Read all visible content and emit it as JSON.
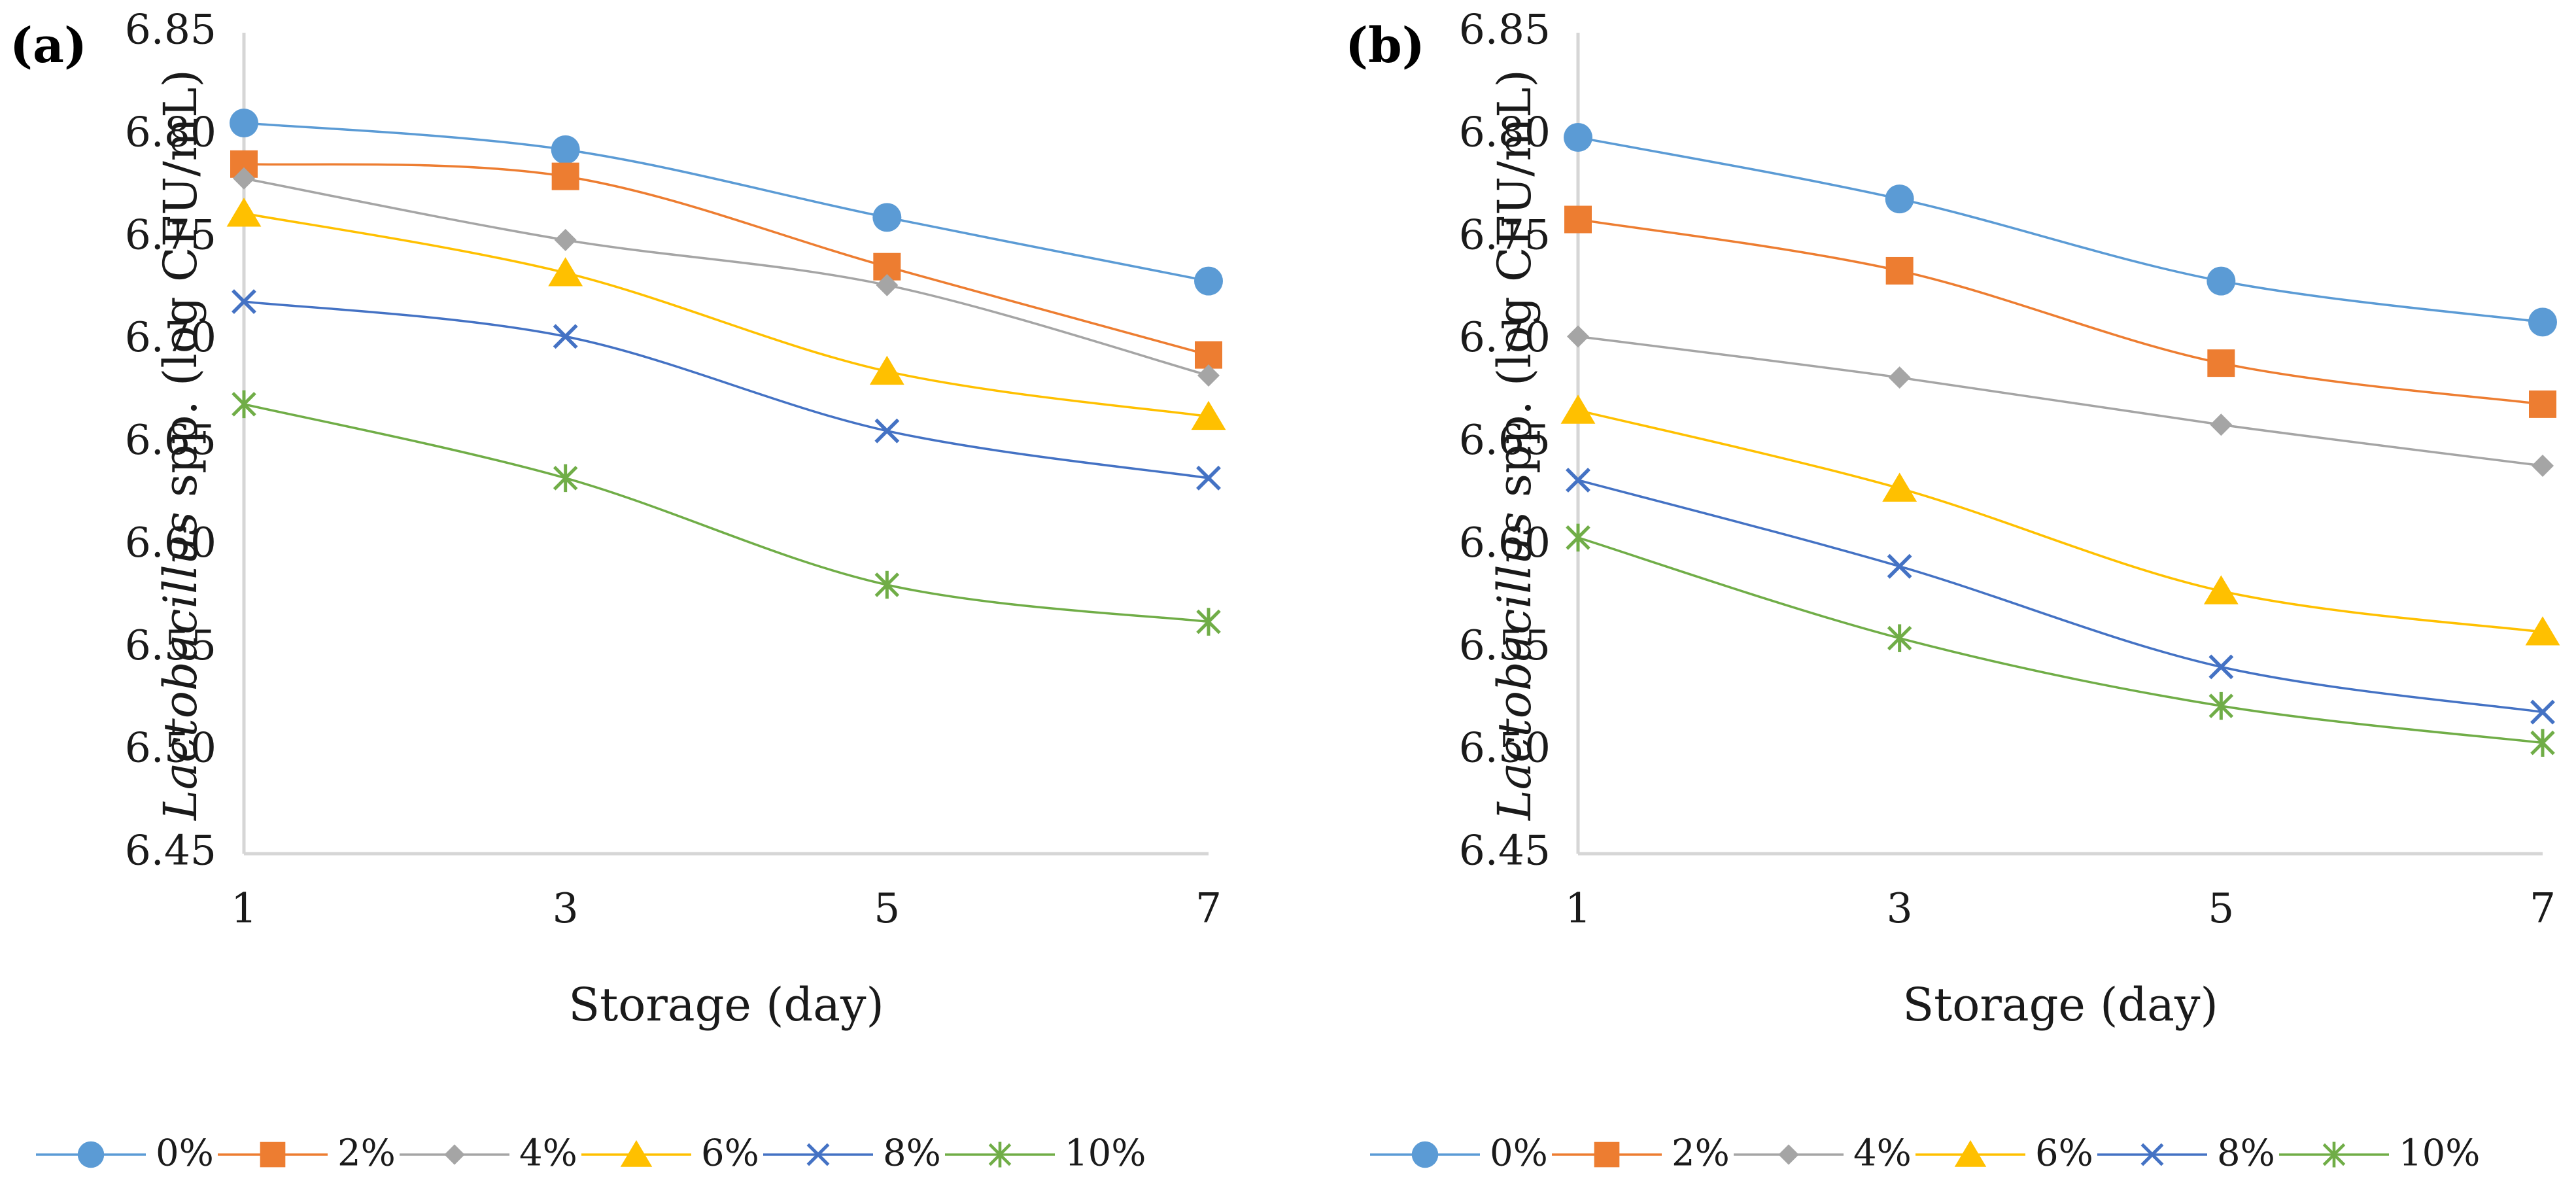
{
  "chart_data": [
    {
      "type": "line",
      "panel_label": "(a)",
      "x": [
        1,
        3,
        5,
        7
      ],
      "xlabel": "Storage (day)",
      "ylabel_italic": "Lactobacillus",
      "ylabel_rest": " spp. (log CFU/mL)",
      "ylim": [
        6.45,
        6.85
      ],
      "yticks": [
        "6.45",
        "6.50",
        "6.55",
        "6.60",
        "6.65",
        "6.70",
        "6.75",
        "6.80",
        "6.85"
      ],
      "xticks": [
        "1",
        "3",
        "5",
        "7"
      ],
      "legend_position": "bottom",
      "series": [
        {
          "name": "0%",
          "marker": "circle",
          "color": "#5B9BD5",
          "values": [
            6.806,
            6.793,
            6.76,
            6.729
          ]
        },
        {
          "name": "2%",
          "marker": "square",
          "color": "#ED7D31",
          "values": [
            6.786,
            6.78,
            6.736,
            6.693
          ]
        },
        {
          "name": "4%",
          "marker": "diamond",
          "color": "#A5A5A5",
          "values": [
            6.779,
            6.749,
            6.727,
            6.683
          ]
        },
        {
          "name": "6%",
          "marker": "triangle",
          "color": "#FFC000",
          "values": [
            6.762,
            6.733,
            6.685,
            6.663
          ]
        },
        {
          "name": "8%",
          "marker": "x",
          "color": "#4472C4",
          "values": [
            6.719,
            6.702,
            6.656,
            6.633
          ]
        },
        {
          "name": "10%",
          "marker": "star",
          "color": "#70AD47",
          "values": [
            6.669,
            6.633,
            6.581,
            6.563
          ]
        }
      ]
    },
    {
      "type": "line",
      "panel_label": "(b)",
      "x": [
        1,
        3,
        5,
        7
      ],
      "xlabel": "Storage (day)",
      "ylabel_italic": "Lactobacillus",
      "ylabel_rest": " spp. (log CFU/mL)",
      "ylim": [
        6.45,
        6.85
      ],
      "yticks": [
        "6.45",
        "6.50",
        "6.55",
        "6.60",
        "6.65",
        "6.70",
        "6.75",
        "6.80",
        "6.85"
      ],
      "xticks": [
        "1",
        "3",
        "5",
        "7"
      ],
      "legend_position": "bottom",
      "series": [
        {
          "name": "0%",
          "marker": "circle",
          "color": "#5B9BD5",
          "values": [
            6.799,
            6.769,
            6.729,
            6.709
          ]
        },
        {
          "name": "2%",
          "marker": "square",
          "color": "#ED7D31",
          "values": [
            6.759,
            6.734,
            6.689,
            6.669
          ]
        },
        {
          "name": "4%",
          "marker": "diamond",
          "color": "#A5A5A5",
          "values": [
            6.702,
            6.682,
            6.659,
            6.639
          ]
        },
        {
          "name": "6%",
          "marker": "triangle",
          "color": "#FFC000",
          "values": [
            6.666,
            6.628,
            6.578,
            6.558
          ]
        },
        {
          "name": "8%",
          "marker": "x",
          "color": "#4472C4",
          "values": [
            6.632,
            6.59,
            6.541,
            6.519
          ]
        },
        {
          "name": "10%",
          "marker": "star",
          "color": "#70AD47",
          "values": [
            6.604,
            6.555,
            6.522,
            6.504
          ]
        }
      ]
    }
  ]
}
